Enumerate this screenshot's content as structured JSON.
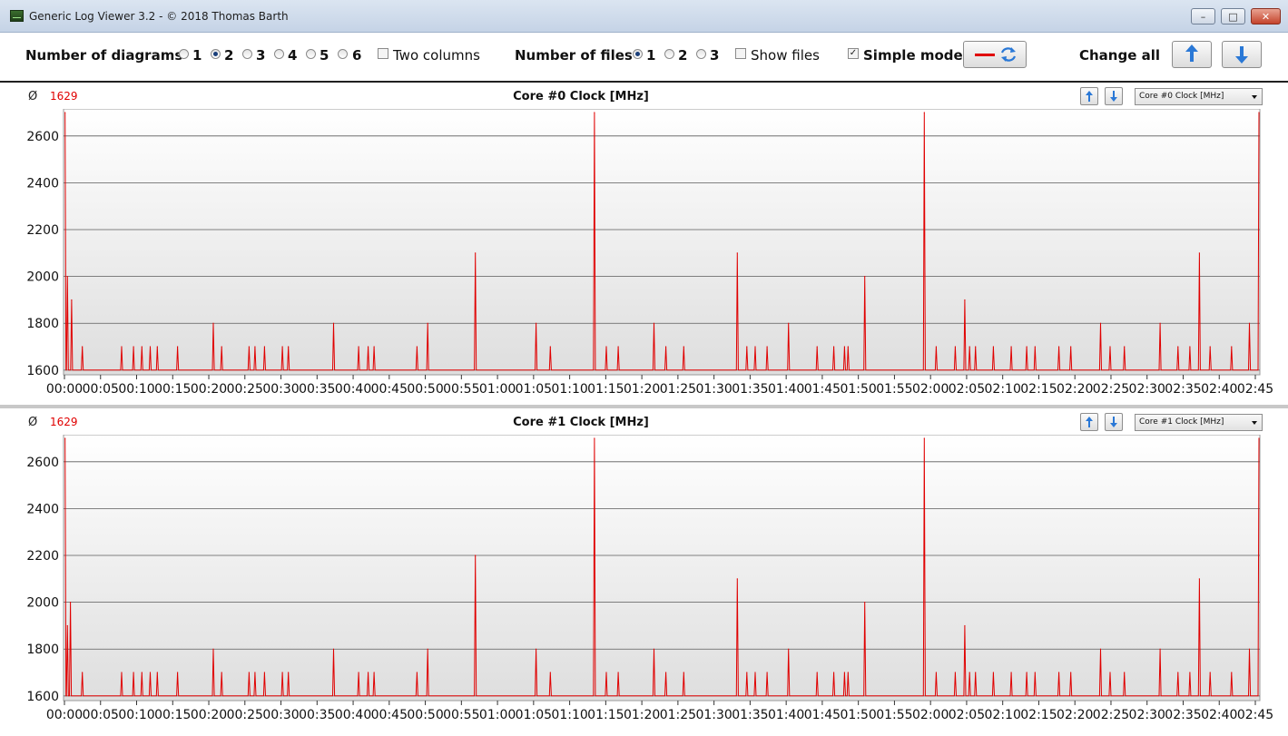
{
  "window": {
    "title": "Generic Log Viewer 3.2 - © 2018 Thomas Barth",
    "minimize_glyph": "–",
    "maximize_glyph": "□",
    "close_glyph": "✕"
  },
  "toolbar": {
    "diagrams_label": "Number of diagrams",
    "diagram_options": [
      "1",
      "2",
      "3",
      "4",
      "5",
      "6"
    ],
    "diagram_selected": "2",
    "two_columns_label": "Two columns",
    "two_columns_checked": false,
    "files_label": "Number of files",
    "file_options": [
      "1",
      "2",
      "3"
    ],
    "file_selected": "1",
    "show_files_label": "Show files",
    "show_files_checked": false,
    "simple_mode_label": "Simple mode",
    "simple_mode_checked": true,
    "change_all_label": "Change all",
    "line_color": "#e00000"
  },
  "panels": [
    {
      "avg_symbol": "Ø",
      "avg_value": "1629",
      "title": "Core #0 Clock [MHz]",
      "selector_value": "Core #0 Clock [MHz]"
    },
    {
      "avg_symbol": "Ø",
      "avg_value": "1629",
      "title": "Core #1 Clock [MHz]",
      "selector_value": "Core #1 Clock [MHz]"
    }
  ],
  "chart_data": [
    {
      "type": "line",
      "title": "Core #0 Clock [MHz]",
      "xlabel": "",
      "ylabel": "",
      "x_ticks": [
        "00:00",
        "00:05",
        "00:10",
        "00:15",
        "00:20",
        "00:25",
        "00:30",
        "00:35",
        "00:40",
        "00:45",
        "00:50",
        "00:55",
        "01:00",
        "01:05",
        "01:10",
        "01:15",
        "01:20",
        "01:25",
        "01:30",
        "01:35",
        "01:40",
        "01:45",
        "01:50",
        "01:55",
        "02:00",
        "02:05",
        "02:10",
        "02:15",
        "02:20",
        "02:25",
        "02:30",
        "02:35",
        "02:40",
        "02:45"
      ],
      "y_ticks": [
        1600,
        1800,
        2000,
        2200,
        2400,
        2600
      ],
      "ylim": [
        1580,
        2700
      ],
      "xlim": [
        0,
        10030
      ],
      "grid": true,
      "baseline": 1600,
      "series": [
        {
          "color": "#e00000",
          "peaks": [
            [
              5,
              2700
            ],
            [
              25,
              2000
            ],
            [
              60,
              1900
            ],
            [
              150,
              1700
            ],
            [
              480,
              1700
            ],
            [
              580,
              1700
            ],
            [
              650,
              1700
            ],
            [
              720,
              1700
            ],
            [
              780,
              1700
            ],
            [
              950,
              1700
            ],
            [
              1250,
              1800
            ],
            [
              1320,
              1700
            ],
            [
              1550,
              1700
            ],
            [
              1600,
              1700
            ],
            [
              1680,
              1700
            ],
            [
              1830,
              1700
            ],
            [
              1880,
              1700
            ],
            [
              2260,
              1800
            ],
            [
              2470,
              1700
            ],
            [
              2550,
              1700
            ],
            [
              2600,
              1700
            ],
            [
              2960,
              1700
            ],
            [
              3050,
              1800
            ],
            [
              3450,
              2100
            ],
            [
              3960,
              1800
            ],
            [
              4080,
              1700
            ],
            [
              4450,
              2700
            ],
            [
              4550,
              1700
            ],
            [
              4650,
              1700
            ],
            [
              4950,
              1800
            ],
            [
              5050,
              1700
            ],
            [
              5200,
              1700
            ],
            [
              5650,
              2100
            ],
            [
              5730,
              1700
            ],
            [
              5800,
              1700
            ],
            [
              5900,
              1700
            ],
            [
              6080,
              1800
            ],
            [
              6320,
              1700
            ],
            [
              6460,
              1700
            ],
            [
              6550,
              1700
            ],
            [
              6580,
              1700
            ],
            [
              6720,
              2000
            ],
            [
              7220,
              2700
            ],
            [
              7320,
              1700
            ],
            [
              7480,
              1700
            ],
            [
              7560,
              1900
            ],
            [
              7600,
              1700
            ],
            [
              7650,
              1700
            ],
            [
              7800,
              1700
            ],
            [
              7950,
              1700
            ],
            [
              8080,
              1700
            ],
            [
              8150,
              1700
            ],
            [
              8350,
              1700
            ],
            [
              8450,
              1700
            ],
            [
              8700,
              1800
            ],
            [
              8780,
              1700
            ],
            [
              8900,
              1700
            ],
            [
              9200,
              1800
            ],
            [
              9350,
              1700
            ],
            [
              9450,
              1700
            ],
            [
              9530,
              2100
            ],
            [
              9620,
              1700
            ],
            [
              9800,
              1700
            ],
            [
              9950,
              1800
            ],
            [
              10030,
              2700
            ]
          ]
        }
      ]
    },
    {
      "type": "line",
      "title": "Core #1 Clock [MHz]",
      "xlabel": "",
      "ylabel": "",
      "x_ticks": [
        "00:00",
        "00:05",
        "00:10",
        "00:15",
        "00:20",
        "00:25",
        "00:30",
        "00:35",
        "00:40",
        "00:45",
        "00:50",
        "00:55",
        "01:00",
        "01:05",
        "01:10",
        "01:15",
        "01:20",
        "01:25",
        "01:30",
        "01:35",
        "01:40",
        "01:45",
        "01:50",
        "01:55",
        "02:00",
        "02:05",
        "02:10",
        "02:15",
        "02:20",
        "02:25",
        "02:30",
        "02:35",
        "02:40",
        "02:45"
      ],
      "y_ticks": [
        1600,
        1800,
        2000,
        2200,
        2400,
        2600
      ],
      "ylim": [
        1580,
        2700
      ],
      "xlim": [
        0,
        10030
      ],
      "grid": true,
      "baseline": 1600,
      "series": [
        {
          "color": "#e00000",
          "peaks": [
            [
              5,
              2700
            ],
            [
              25,
              1900
            ],
            [
              50,
              2000
            ],
            [
              150,
              1700
            ],
            [
              480,
              1700
            ],
            [
              580,
              1700
            ],
            [
              650,
              1700
            ],
            [
              720,
              1700
            ],
            [
              780,
              1700
            ],
            [
              950,
              1700
            ],
            [
              1250,
              1800
            ],
            [
              1320,
              1700
            ],
            [
              1550,
              1700
            ],
            [
              1600,
              1700
            ],
            [
              1680,
              1700
            ],
            [
              1830,
              1700
            ],
            [
              1880,
              1700
            ],
            [
              2260,
              1800
            ],
            [
              2470,
              1700
            ],
            [
              2550,
              1700
            ],
            [
              2600,
              1700
            ],
            [
              2960,
              1700
            ],
            [
              3050,
              1800
            ],
            [
              3450,
              2200
            ],
            [
              3960,
              1800
            ],
            [
              4080,
              1700
            ],
            [
              4450,
              2700
            ],
            [
              4550,
              1700
            ],
            [
              4650,
              1700
            ],
            [
              4950,
              1800
            ],
            [
              5050,
              1700
            ],
            [
              5200,
              1700
            ],
            [
              5650,
              2100
            ],
            [
              5730,
              1700
            ],
            [
              5800,
              1700
            ],
            [
              5900,
              1700
            ],
            [
              6080,
              1800
            ],
            [
              6320,
              1700
            ],
            [
              6460,
              1700
            ],
            [
              6550,
              1700
            ],
            [
              6580,
              1700
            ],
            [
              6720,
              2000
            ],
            [
              7220,
              2700
            ],
            [
              7320,
              1700
            ],
            [
              7480,
              1700
            ],
            [
              7560,
              1900
            ],
            [
              7600,
              1700
            ],
            [
              7650,
              1700
            ],
            [
              7800,
              1700
            ],
            [
              7950,
              1700
            ],
            [
              8080,
              1700
            ],
            [
              8150,
              1700
            ],
            [
              8350,
              1700
            ],
            [
              8450,
              1700
            ],
            [
              8700,
              1800
            ],
            [
              8780,
              1700
            ],
            [
              8900,
              1700
            ],
            [
              9200,
              1800
            ],
            [
              9350,
              1700
            ],
            [
              9450,
              1700
            ],
            [
              9530,
              2100
            ],
            [
              9620,
              1700
            ],
            [
              9800,
              1700
            ],
            [
              9950,
              1800
            ],
            [
              10030,
              2700
            ]
          ]
        }
      ]
    }
  ]
}
